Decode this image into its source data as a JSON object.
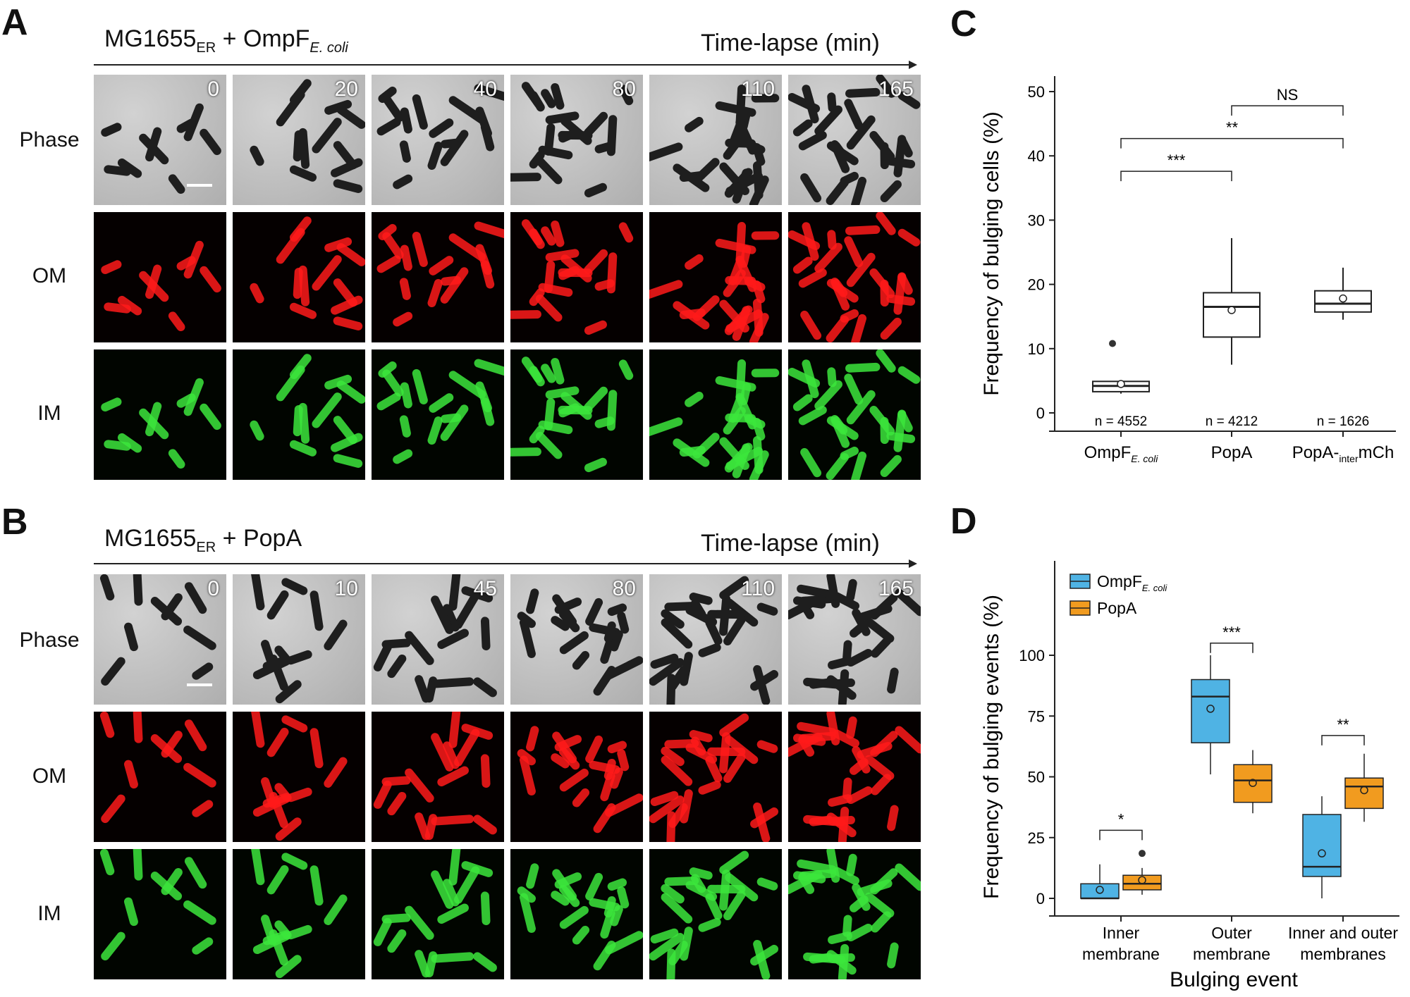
{
  "panelA": {
    "letter": "A",
    "strain_main": "MG1655",
    "strain_sub": "ER",
    "strain_plus": " + OmpF",
    "strain_plus_sub": "E. coli",
    "timelapse_label": "Time-lapse (min)",
    "times": [
      "0",
      "20",
      "40",
      "80",
      "110",
      "165"
    ],
    "rows": [
      "Phase",
      "OM",
      "IM"
    ]
  },
  "panelB": {
    "letter": "B",
    "strain_main": "MG1655",
    "strain_sub": "ER",
    "strain_plus": " + PopA",
    "timelapse_label": "Time-lapse (min)",
    "times": [
      "0",
      "10",
      "45",
      "80",
      "110",
      "165"
    ],
    "rows": [
      "Phase",
      "OM",
      "IM"
    ]
  },
  "chart_data": [
    {
      "panel": "C",
      "type": "box",
      "ylabel": "Frequency of bulging cells (%)",
      "ylim": [
        0,
        50
      ],
      "yticks": [
        0,
        10,
        20,
        30,
        40,
        50
      ],
      "groups": [
        {
          "label": "OmpF",
          "label_sub": "E. coli",
          "n_label": "n = 4552",
          "min": 3.0,
          "q1": 3.3,
          "median": 4.2,
          "q3": 4.9,
          "max": 5.0,
          "mean": 4.5,
          "outliers": [
            10.8
          ]
        },
        {
          "label": "PopA",
          "label_sub": "",
          "n_label": "n = 4212",
          "min": 7.5,
          "q1": 11.8,
          "median": 16.5,
          "q3": 18.7,
          "max": 27.2,
          "mean": 16.0,
          "outliers": []
        },
        {
          "label": "PopA-",
          "label_sub": "inter",
          "label_tail": "mCh",
          "n_label": "n = 1626",
          "min": 14.5,
          "q1": 15.7,
          "median": 17.0,
          "q3": 19.0,
          "max": 22.6,
          "mean": 17.8,
          "outliers": []
        }
      ],
      "significance": [
        {
          "from": 0,
          "to": 1,
          "label": "***",
          "y": 37.6
        },
        {
          "from": 0,
          "to": 2,
          "label": "**",
          "y": 42.7
        },
        {
          "from": 1,
          "to": 2,
          "label": "NS",
          "y": 47.8
        }
      ]
    },
    {
      "panel": "D",
      "type": "box",
      "ylabel": "Frequency of bulging events (%)",
      "xlabel": "Bulging event",
      "ylim": [
        0,
        100
      ],
      "yticks": [
        0,
        25,
        50,
        75,
        100
      ],
      "categories": [
        "Inner membrane",
        "Outer membrane",
        "Inner and outer membranes"
      ],
      "category_lines": [
        [
          "Inner",
          "membrane"
        ],
        [
          "Outer",
          "membrane"
        ],
        [
          "Inner and outer",
          "membranes"
        ]
      ],
      "legend": {
        "placement": "top-left"
      },
      "series": [
        {
          "name": "OmpF",
          "name_sub": "E. coli",
          "color": "#4fb3e4",
          "boxes": [
            {
              "min": 0,
              "q1": 0,
              "median": 0,
              "q3": 6,
              "max": 14,
              "mean": 3.5,
              "outliers": []
            },
            {
              "min": 51,
              "q1": 64,
              "median": 83,
              "q3": 90,
              "max": 100,
              "mean": 78,
              "outliers": []
            },
            {
              "min": 0,
              "q1": 9,
              "median": 13,
              "q3": 34.5,
              "max": 42,
              "mean": 18.5,
              "outliers": []
            }
          ]
        },
        {
          "name": "PopA",
          "name_sub": "",
          "color": "#f19b1f",
          "boxes": [
            {
              "min": 1.5,
              "q1": 3.5,
              "median": 6,
              "q3": 9.5,
              "max": 12.5,
              "mean": 7.5,
              "outliers": [
                18.5
              ]
            },
            {
              "min": 35,
              "q1": 39.5,
              "median": 48.5,
              "q3": 55,
              "max": 61,
              "mean": 47.5,
              "outliers": []
            },
            {
              "min": 31.5,
              "q1": 37,
              "median": 46,
              "q3": 49.5,
              "max": 59.5,
              "mean": 44.5,
              "outliers": []
            }
          ]
        }
      ],
      "significance": [
        {
          "category": 0,
          "label": "*",
          "y": 28
        },
        {
          "category": 1,
          "label": "***",
          "y": 105
        },
        {
          "category": 2,
          "label": "**",
          "y": 67
        }
      ]
    }
  ],
  "colors": {
    "om": "#ff1a1a",
    "im": "#3ce63c",
    "phase_cell": "#1e1e1e"
  }
}
